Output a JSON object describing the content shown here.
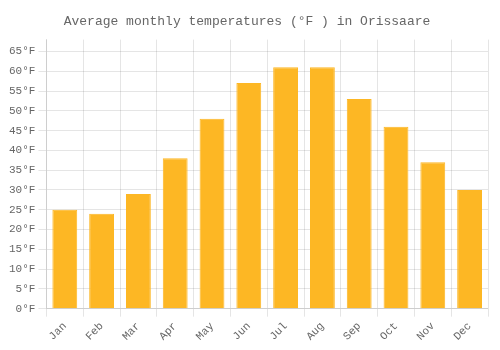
{
  "chart_data": {
    "type": "bar",
    "title": "Average monthly temperatures (°F ) in Orissaare",
    "categories": [
      "Jan",
      "Feb",
      "Mar",
      "Apr",
      "May",
      "Jun",
      "Jul",
      "Aug",
      "Sep",
      "Oct",
      "Nov",
      "Dec"
    ],
    "values": [
      25,
      24,
      29,
      38,
      48,
      57,
      61,
      61,
      53,
      46,
      37,
      30
    ],
    "color": "#FDB724",
    "ylim": [
      0,
      68
    ],
    "yticks": [
      {
        "value": 0,
        "label": "0°F"
      },
      {
        "value": 5,
        "label": "5°F"
      },
      {
        "value": 10,
        "label": "10°F"
      },
      {
        "value": 15,
        "label": "15°F"
      },
      {
        "value": 20,
        "label": "20°F"
      },
      {
        "value": 25,
        "label": "25°F"
      },
      {
        "value": 30,
        "label": "30°F"
      },
      {
        "value": 35,
        "label": "35°F"
      },
      {
        "value": 40,
        "label": "40°F"
      },
      {
        "value": 45,
        "label": "45°F"
      },
      {
        "value": 50,
        "label": "50°F"
      },
      {
        "value": 55,
        "label": "55°F"
      },
      {
        "value": 60,
        "label": "60°F"
      },
      {
        "value": 65,
        "label": "65°F"
      }
    ],
    "grid": true
  }
}
